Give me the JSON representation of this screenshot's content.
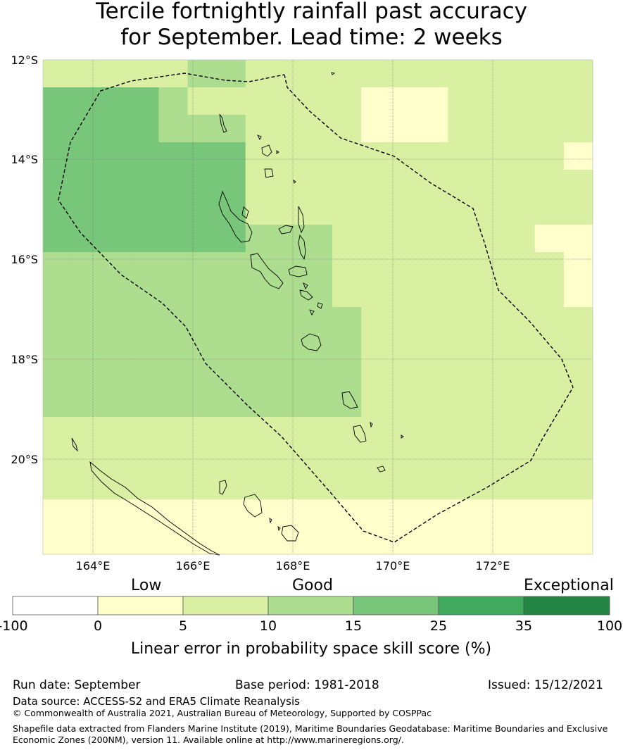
{
  "title_line1": "Tercile fortnightly rainfall past accuracy",
  "title_line2": "for September. Lead time: 2 weeks",
  "map": {
    "lat_labels": [
      "12°S",
      "14°S",
      "16°S",
      "18°S",
      "20°S"
    ],
    "lon_labels": [
      "164°E",
      "166°E",
      "168°E",
      "170°E",
      "172°E"
    ],
    "colors": {
      "c0": "#ffffcc",
      "c1": "#d9f0a3",
      "c2": "#addd8e",
      "c3": "#78c679",
      "c4": "#41ab5d",
      "c5": "#238443"
    },
    "grid_rows": [
      "1111122111111111111",
      "3333211111100011111",
      "3333222111100011111",
      "3333333111111111110",
      "3333333111111111111",
      "3333333111111111111",
      "3333333222111111100",
      "2222222222111111110",
      "2222222222111111110",
      "2222222222211111111",
      "2222222222211111111",
      "2222222222211111111",
      "2222222222211111111",
      "1111111111111111111",
      "1111111111111111111",
      "1111111111111111111",
      "0000000000000000000",
      "0000000000000000000"
    ]
  },
  "legend": {
    "categories": [
      "Low",
      "Good",
      "Exceptional"
    ],
    "tick_labels": [
      "-100",
      "0",
      "5",
      "10",
      "15",
      "25",
      "35",
      "100"
    ],
    "colors": [
      "#ffffff",
      "#ffffcc",
      "#d9f0a3",
      "#addd8e",
      "#78c679",
      "#41ab5d",
      "#238443"
    ],
    "axis_label": "Linear error in probability space skill score (%)"
  },
  "footer": {
    "run_date": "Run date: September",
    "base_period": "Base period: 1981-2018",
    "issued": "Issued: 15/12/2021",
    "data_source": "Data source: ACCESS-S2 and ERA5 Climate Reanalysis",
    "copyright": "© Commonwealth of Australia 2021, Australian Bureau of Meteorology, Supported by COSPPac",
    "shapefile_line1": "Shapefile data extracted from Flanders Marine Institute (2019), Maritime Boundaries Geodatabase: Maritime Boundaries and Exclusive",
    "shapefile_line2": "Economic Zones (200NM), version 11. Available online at http://www.marineregions.org/."
  }
}
